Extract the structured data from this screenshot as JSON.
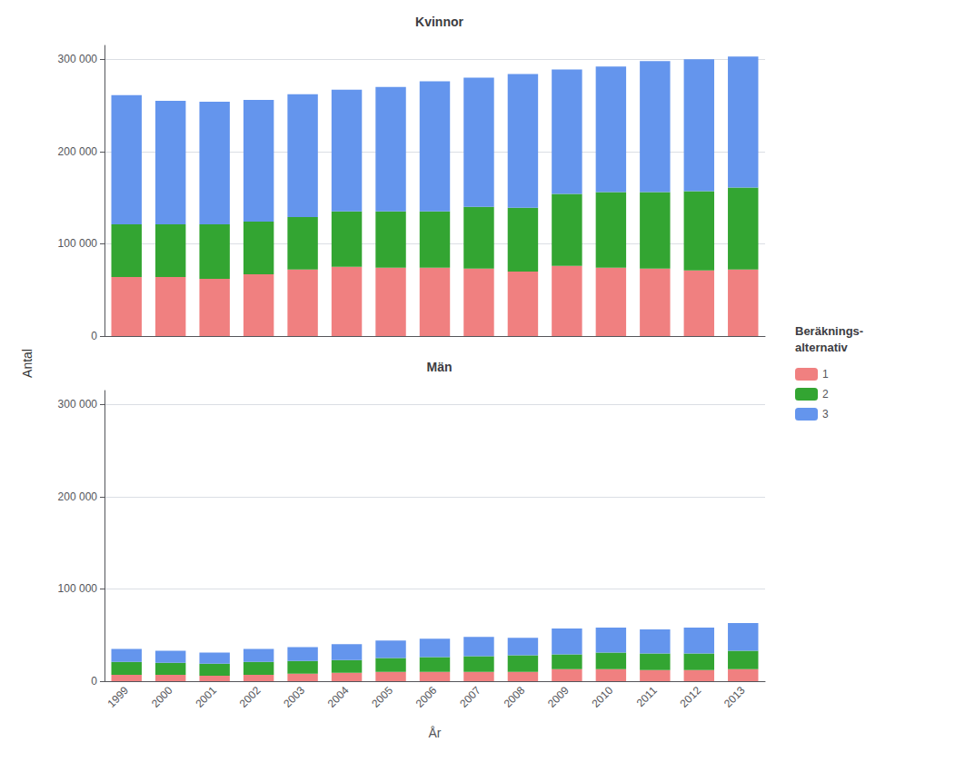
{
  "chart_data": [
    {
      "type": "bar",
      "title": "Kvinnor",
      "categories": [
        "1999",
        "2000",
        "2001",
        "2002",
        "2003",
        "2004",
        "2005",
        "2006",
        "2007",
        "2008",
        "2009",
        "2010",
        "2011",
        "2012",
        "2013"
      ],
      "series": [
        {
          "name": "1",
          "color": "#F08080",
          "values": [
            64000,
            64000,
            62000,
            67000,
            72000,
            75000,
            74000,
            74000,
            73000,
            70000,
            76000,
            74000,
            73000,
            71000,
            72000
          ]
        },
        {
          "name": "2",
          "color": "#33A532",
          "values": [
            57000,
            57000,
            59000,
            57000,
            57000,
            60000,
            61000,
            61000,
            67000,
            69000,
            78000,
            82000,
            83000,
            86000,
            89000
          ]
        },
        {
          "name": "3",
          "color": "#6495ED",
          "values": [
            140000,
            134000,
            133000,
            132000,
            133000,
            132000,
            135000,
            141000,
            140000,
            145000,
            135000,
            136000,
            142000,
            143000,
            142000
          ]
        }
      ],
      "stacked": true,
      "ylabel": "Antal",
      "ylim": [
        0,
        315000
      ],
      "yticks": [
        0,
        {
          "value": 100000,
          "label": "100 000"
        },
        {
          "value": 200000,
          "label": "200 000"
        },
        {
          "value": 300000,
          "label": "300 000"
        }
      ],
      "grid": true,
      "tick_labels": "y",
      "legend": "right",
      "legend_title": "Beräknings-\nalternativ"
    },
    {
      "type": "bar",
      "title": "Män",
      "categories": [
        "1999",
        "2000",
        "2001",
        "2002",
        "2003",
        "2004",
        "2005",
        "2006",
        "2007",
        "2008",
        "2009",
        "2010",
        "2011",
        "2012",
        "2013"
      ],
      "series": [
        {
          "name": "1",
          "color": "#F08080",
          "values": [
            7000,
            7000,
            6000,
            7000,
            8000,
            9000,
            10000,
            10000,
            10000,
            10000,
            13000,
            13000,
            12000,
            12000,
            13000
          ]
        },
        {
          "name": "2",
          "color": "#33A532",
          "values": [
            14000,
            13000,
            13000,
            14000,
            14000,
            14000,
            15000,
            16000,
            17000,
            18000,
            16000,
            18000,
            18000,
            18000,
            20000
          ]
        },
        {
          "name": "3",
          "color": "#6495ED",
          "values": [
            14000,
            13000,
            12000,
            14000,
            15000,
            17000,
            19000,
            20000,
            21000,
            19000,
            28000,
            27000,
            26000,
            28000,
            30000
          ]
        }
      ],
      "stacked": true,
      "xlabel": "År",
      "ylim": [
        0,
        315000
      ],
      "yticks": [
        0,
        {
          "value": 100000,
          "label": "100 000"
        },
        {
          "value": 200000,
          "label": "200 000"
        },
        {
          "value": 300000,
          "label": "300 000"
        }
      ],
      "grid": true
    }
  ]
}
